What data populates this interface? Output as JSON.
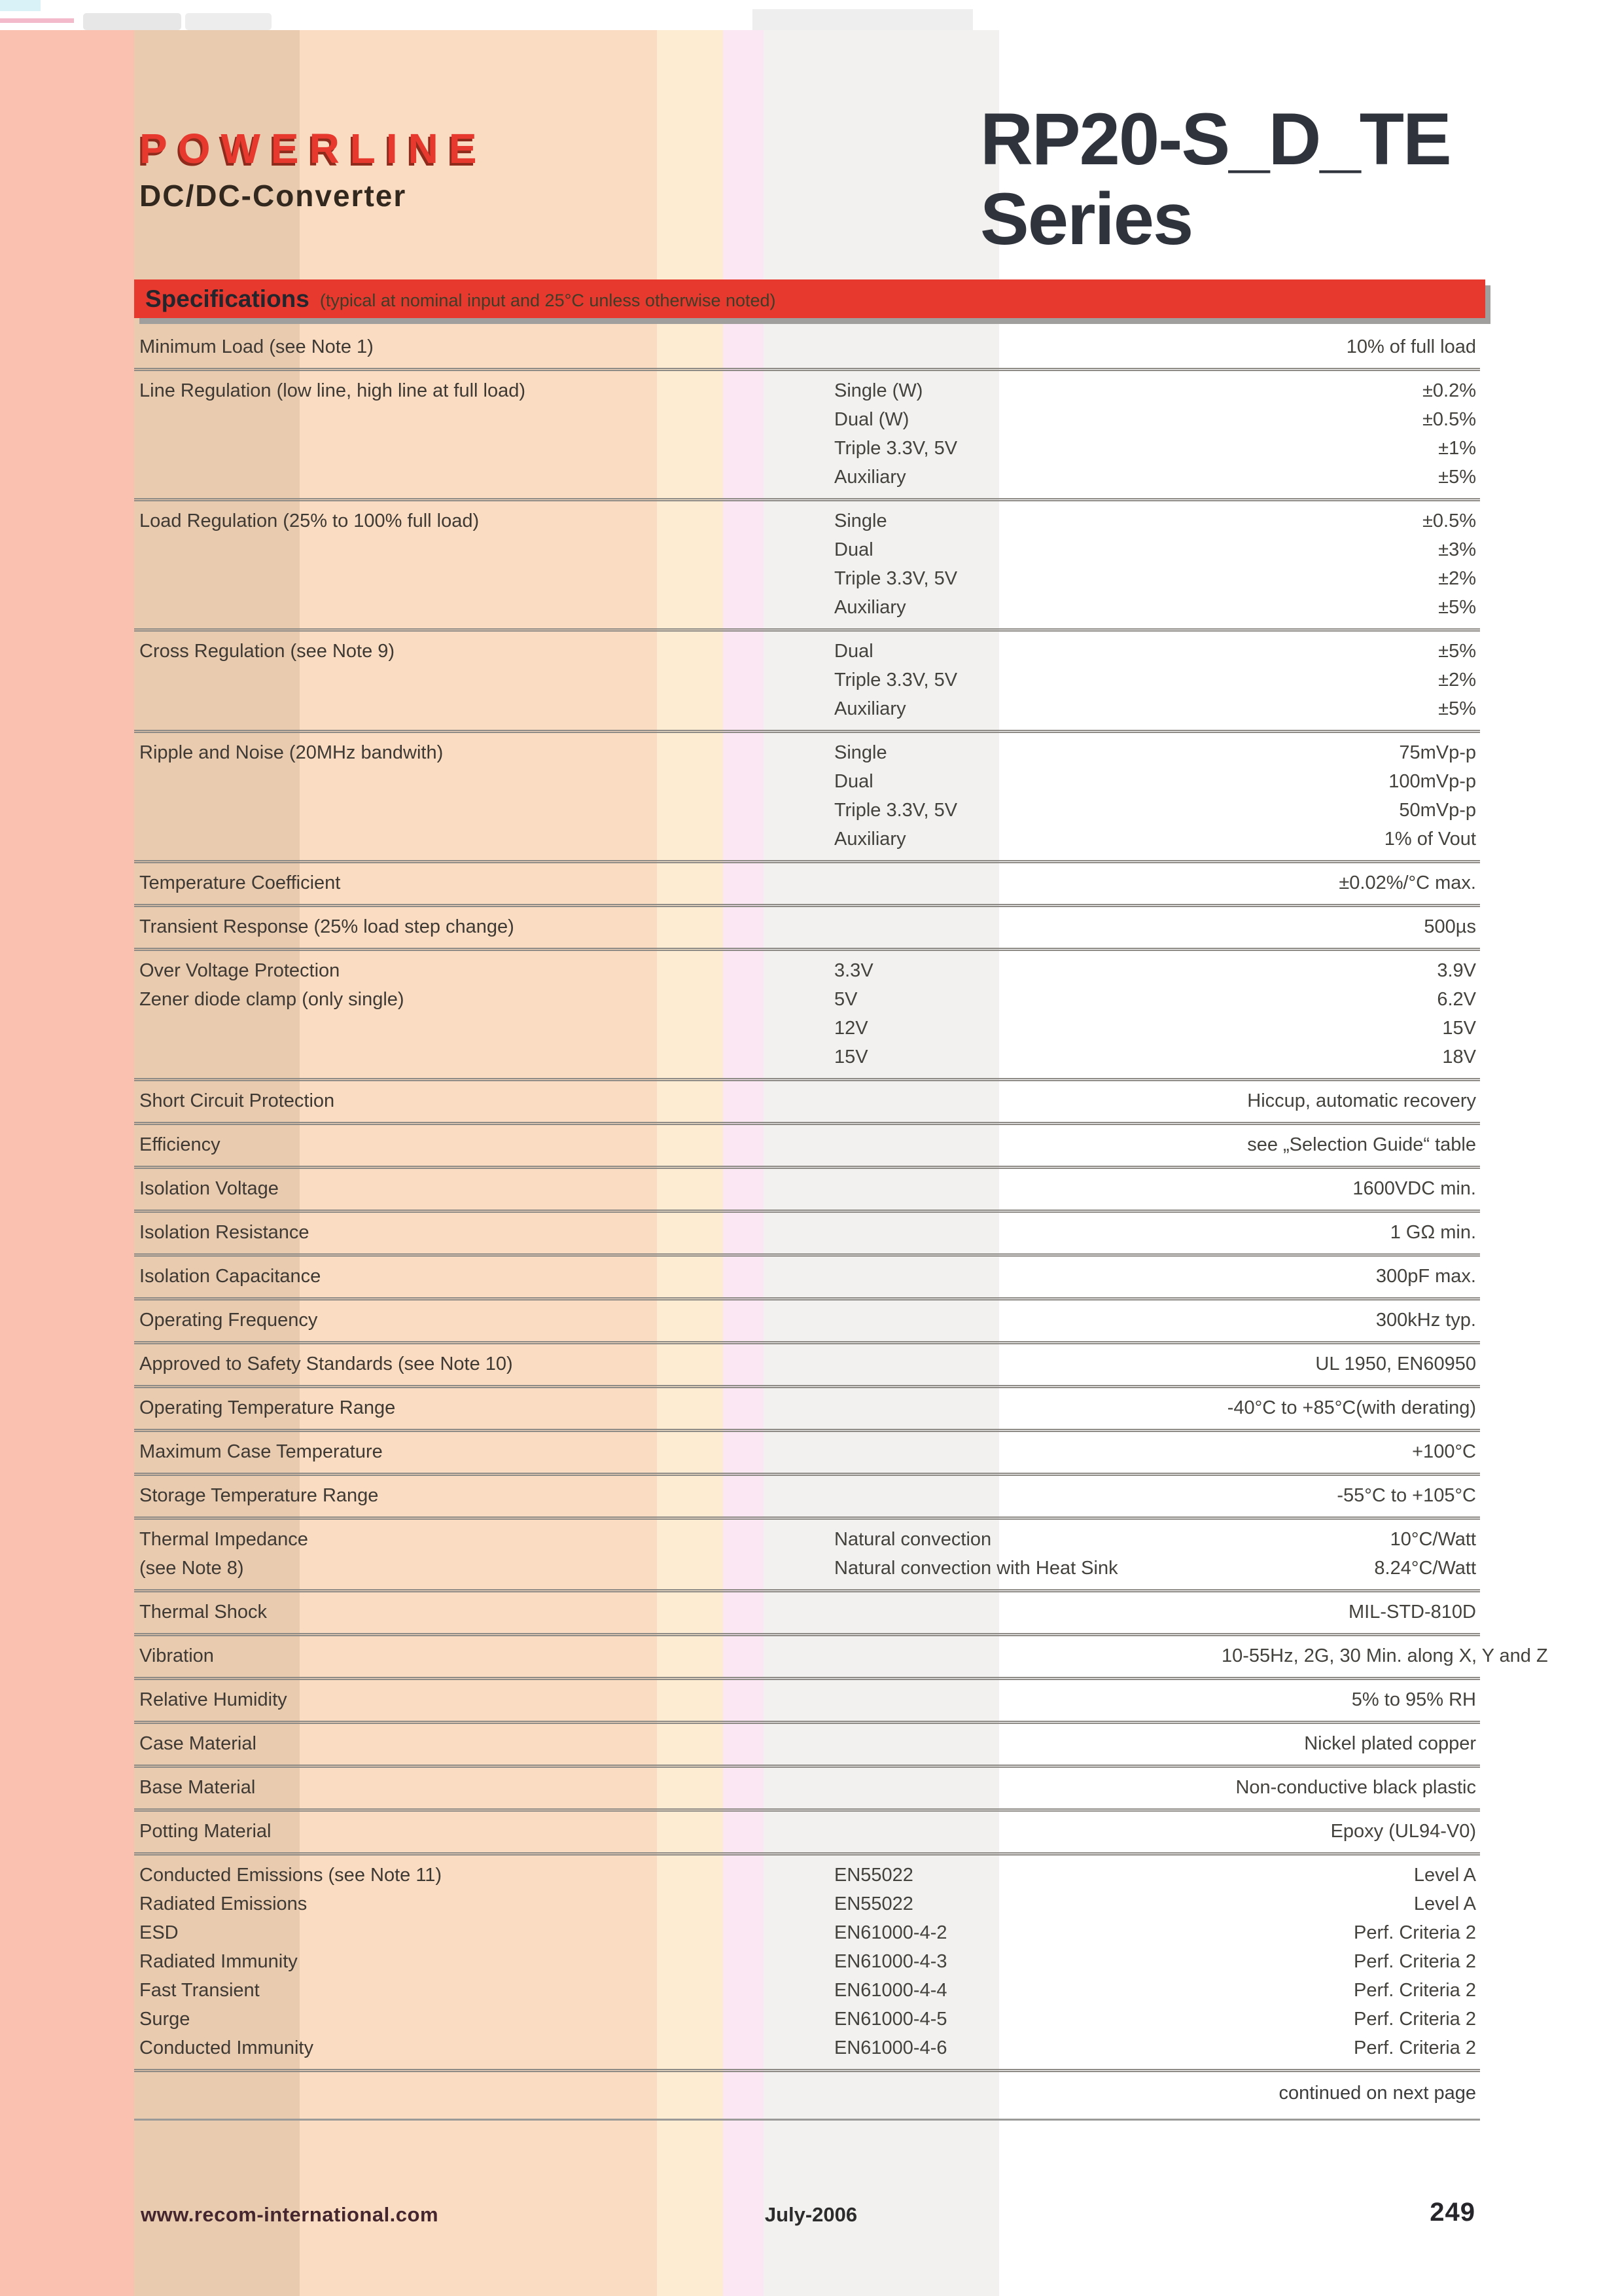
{
  "theme": {
    "accent": "#e8392f",
    "accent_shadow": "#8f2b1c",
    "title_color": "#2f333c",
    "label_color": "#3e3933",
    "value_color": "#44423d",
    "bar_title_color": "#23262d",
    "bar_note_color": "#3f3d28",
    "separator_color": "#8e8b86",
    "footer_brand_color": "#46262e",
    "footer_text_color": "#2c2c2c",
    "page_number_color": "#26262a",
    "stripes": [
      "#fac1b0",
      "#e9cbb0",
      "#f9dcc1",
      "#fdebd2",
      "#fbe7f3",
      "#f2f1ef"
    ]
  },
  "header": {
    "brand": "POWERLINE",
    "subtitle": "DC/DC-Converter",
    "title_line1": "RP20-S_D_TE",
    "title_line2": "Series"
  },
  "spec_bar": {
    "title": "Specifications",
    "note": "(typical at nominal input and 25°C unless otherwise noted)"
  },
  "table": {
    "groups": [
      {
        "rows": [
          {
            "label": "Minimum Load (see Note 1)",
            "condition": "",
            "value": "10% of full load"
          }
        ]
      },
      {
        "rows": [
          {
            "label": "Line Regulation (low line, high line at full load)",
            "condition": "Single (W)",
            "value": "±0.2%"
          },
          {
            "label": "",
            "condition": "Dual (W)",
            "value": "±0.5%"
          },
          {
            "label": "",
            "condition": "Triple 3.3V, 5V",
            "value": "±1%"
          },
          {
            "label": "",
            "condition": "Auxiliary",
            "value": "±5%"
          }
        ]
      },
      {
        "rows": [
          {
            "label": "Load Regulation (25% to 100% full load)",
            "condition": "Single",
            "value": "±0.5%"
          },
          {
            "label": "",
            "condition": "Dual",
            "value": "±3%"
          },
          {
            "label": "",
            "condition": "Triple 3.3V, 5V",
            "value": "±2%"
          },
          {
            "label": "",
            "condition": "Auxiliary",
            "value": "±5%"
          }
        ]
      },
      {
        "rows": [
          {
            "label": "Cross Regulation (see Note 9)",
            "condition": "Dual",
            "value": "±5%"
          },
          {
            "label": "",
            "condition": "Triple 3.3V, 5V",
            "value": "±2%"
          },
          {
            "label": "",
            "condition": "Auxiliary",
            "value": "±5%"
          }
        ]
      },
      {
        "rows": [
          {
            "label": "Ripple and Noise (20MHz bandwith)",
            "condition": "Single",
            "value": "75mVp-p"
          },
          {
            "label": "",
            "condition": "Dual",
            "value": "100mVp-p"
          },
          {
            "label": "",
            "condition": "Triple 3.3V, 5V",
            "value": "50mVp-p"
          },
          {
            "label": "",
            "condition": "Auxiliary",
            "value": "1% of Vout"
          }
        ]
      },
      {
        "rows": [
          {
            "label": "Temperature Coefficient",
            "condition": "",
            "value": "±0.02%/°C max."
          }
        ]
      },
      {
        "rows": [
          {
            "label": "Transient Response (25% load step change)",
            "condition": "",
            "value": "500µs"
          }
        ]
      },
      {
        "rows": [
          {
            "label": "Over Voltage Protection",
            "condition": "3.3V",
            "value": "3.9V"
          },
          {
            "label": "Zener diode clamp (only single)",
            "condition": "5V",
            "value": "6.2V"
          },
          {
            "label": "",
            "condition": "12V",
            "value": "15V"
          },
          {
            "label": "",
            "condition": "15V",
            "value": "18V"
          }
        ]
      },
      {
        "rows": [
          {
            "label": "Short Circuit Protection",
            "condition": "",
            "value": "Hiccup, automatic recovery"
          }
        ]
      },
      {
        "rows": [
          {
            "label": "Efficiency",
            "condition": "",
            "value": "see „Selection Guide“ table"
          }
        ]
      },
      {
        "rows": [
          {
            "label": "Isolation Voltage",
            "condition": "",
            "value": "1600VDC min."
          }
        ]
      },
      {
        "rows": [
          {
            "label": "Isolation Resistance",
            "condition": "",
            "value": "1 GΩ min."
          }
        ]
      },
      {
        "rows": [
          {
            "label": "Isolation Capacitance",
            "condition": "",
            "value": "300pF max."
          }
        ]
      },
      {
        "rows": [
          {
            "label": "Operating Frequency",
            "condition": "",
            "value": "300kHz typ."
          }
        ]
      },
      {
        "rows": [
          {
            "label": "Approved to Safety Standards (see Note 10)",
            "condition": "",
            "value": "UL 1950, EN60950"
          }
        ]
      },
      {
        "rows": [
          {
            "label": "Operating Temperature Range",
            "condition": "",
            "value": "-40°C to +85°C(with derating)"
          }
        ]
      },
      {
        "rows": [
          {
            "label": "Maximum Case Temperature",
            "condition": "",
            "value": "+100°C"
          }
        ]
      },
      {
        "rows": [
          {
            "label": "Storage Temperature Range",
            "condition": "",
            "value": "-55°C to +105°C"
          }
        ]
      },
      {
        "rows": [
          {
            "label": "Thermal Impedance",
            "condition": "Natural convection",
            "value": "10°C/Watt"
          },
          {
            "label": "(see Note 8)",
            "condition": "Natural convection with Heat Sink",
            "value": "8.24°C/Watt"
          }
        ]
      },
      {
        "rows": [
          {
            "label": "Thermal Shock",
            "condition": "",
            "value": "MIL-STD-810D"
          }
        ]
      },
      {
        "rows": [
          {
            "label": "Vibration",
            "condition": "",
            "value": "10-55Hz, 2G, 30 Min. along X, Y and Z"
          }
        ]
      },
      {
        "rows": [
          {
            "label": "Relative Humidity",
            "condition": "",
            "value": "5% to 95% RH"
          }
        ]
      },
      {
        "rows": [
          {
            "label": "Case Material",
            "condition": "",
            "value": "Nickel plated copper"
          }
        ]
      },
      {
        "rows": [
          {
            "label": "Base Material",
            "condition": "",
            "value": "Non-conductive black plastic"
          }
        ]
      },
      {
        "rows": [
          {
            "label": "Potting Material",
            "condition": "",
            "value": "Epoxy (UL94-V0)"
          }
        ]
      },
      {
        "rows": [
          {
            "label": "Conducted Emissions (see Note 11)",
            "condition": "EN55022",
            "value": "Level A"
          },
          {
            "label": "Radiated Emissions",
            "condition": "EN55022",
            "value": "Level A"
          },
          {
            "label": "ESD",
            "condition": "EN61000-4-2",
            "value": "Perf. Criteria 2"
          },
          {
            "label": "Radiated Immunity",
            "condition": "EN61000-4-3",
            "value": "Perf. Criteria 2"
          },
          {
            "label": "Fast Transient",
            "condition": "EN61000-4-4",
            "value": "Perf. Criteria 2"
          },
          {
            "label": "Surge",
            "condition": "EN61000-4-5",
            "value": "Perf. Criteria 2"
          },
          {
            "label": "Conducted Immunity",
            "condition": "EN61000-4-6",
            "value": "Perf. Criteria 2"
          }
        ]
      }
    ]
  },
  "notes": {
    "continued": "continued on next page"
  },
  "footer": {
    "website": "www.recom-international.com",
    "date": "July-2006",
    "page": "249"
  }
}
